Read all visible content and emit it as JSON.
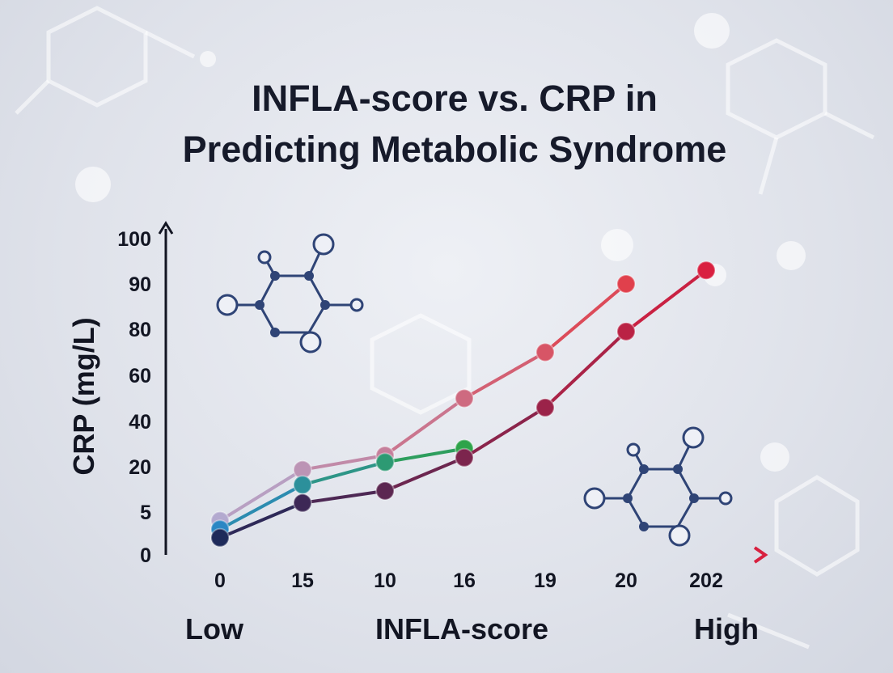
{
  "chart_data": {
    "type": "line",
    "title_lines": [
      "INFLA-score vs. CRP in",
      "Predicting Metabolic Syndrome"
    ],
    "xlabel": "INFLA-score",
    "x_low_label": "Low",
    "x_high_label": "High",
    "ylabel": "CRP (mg/L)",
    "x_ticks": [
      "0",
      "15",
      "10",
      "16",
      "19",
      "20",
      "202"
    ],
    "y_ticks": [
      "0",
      "5",
      "20",
      "40",
      "60",
      "80",
      "90",
      "100"
    ],
    "series": [
      {
        "name": "series-lavender-red",
        "color_start": "#b3a9cf",
        "color_end": "#e0404c",
        "x_index": [
          0,
          1,
          2,
          3,
          4,
          5
        ],
        "values": [
          4,
          19,
          25,
          50,
          70,
          90
        ]
      },
      {
        "name": "series-teal-green",
        "color_start": "#2b87c4",
        "color_end": "#2ea34a",
        "x_index": [
          0,
          1,
          2,
          3
        ],
        "values": [
          3,
          14,
          22,
          28
        ]
      },
      {
        "name": "series-navy-orange-red",
        "color_start": "#1e2a5a",
        "color_end": "#d92040",
        "x_index": [
          0,
          1,
          2,
          3,
          4,
          5,
          6
        ],
        "values": [
          2,
          8,
          12,
          24,
          46,
          79,
          93
        ]
      }
    ],
    "axis_gradient": [
      "#1b2a5e",
      "#2a8bbf",
      "#2fa34d",
      "#e38f1f",
      "#d8203f"
    ]
  }
}
